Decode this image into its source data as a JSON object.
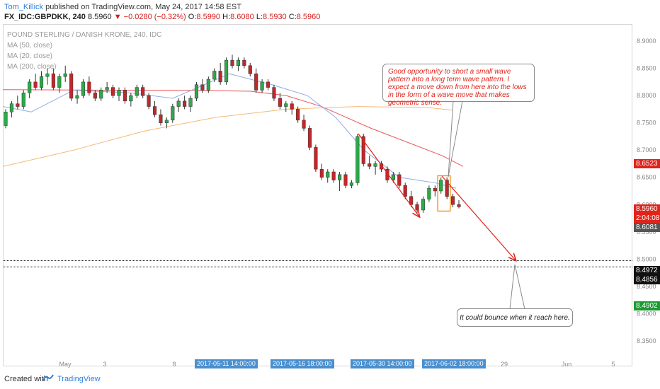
{
  "header": {
    "author": "Tom_Killick",
    "published_text": "published on TradingView.com, May 24, 2017 14:58 EST",
    "symbol": "FX_IDC:GBPDKK, 240",
    "last": "8.5960",
    "change": "▼ −0.0280 (−0.32%)",
    "ohlc": [
      {
        "label": "O:",
        "value": "8.5990"
      },
      {
        "label": "H:",
        "value": "8.6080"
      },
      {
        "label": "L:",
        "value": "8.5930"
      },
      {
        "label": "C:",
        "value": "8.5960"
      }
    ]
  },
  "legend": {
    "title": "POUND STERLING / DANISH KRONE, 240, IDC",
    "indicators": [
      "MA (50, close)",
      "MA (20, close)",
      "MA (200, close)"
    ]
  },
  "annotations": {
    "note_top": "Good opportunity to short a small wave pattern into a long term wave pattern. I expect a move down from here into the lows in the form of a wave move that makes geometric sense.",
    "note_bottom": "It could bounce when it reach here."
  },
  "price_badges": [
    {
      "label": "8.6523",
      "color": "#e0241b"
    },
    {
      "label": "8.5960",
      "color": "#e0241b"
    },
    {
      "label": "2:04:08",
      "color": "#e0241b"
    },
    {
      "label": "8.6081",
      "color": "#555555"
    },
    {
      "label": "8.4972",
      "color": "#111111"
    },
    {
      "label": "8.4856",
      "color": "#111111"
    },
    {
      "label": "8.4902",
      "color": "#1e9a34"
    }
  ],
  "time_badges": [
    "2017-05-11 14:00:00",
    "2017-05-16 18:00:00",
    "2017-05-30 14:00:00",
    "2017-06-02 18:00:00"
  ],
  "footer": {
    "created_with": "Created with",
    "brand": "TradingView"
  },
  "colors": {
    "up": "#2ea84a",
    "down": "#c0282b",
    "ma50": "#e8585a",
    "ma20": "#8fa8e8",
    "ma200": "#f5b97a",
    "arrow": "#e0241b",
    "box": "#f59a23"
  },
  "chart_data": {
    "type": "candlestick",
    "title": "POUND STERLING / DANISH KRONE, 240, IDC",
    "y_ticks": [
      "8.9000",
      "8.8500",
      "8.8000",
      "8.7500",
      "8.7000",
      "8.6500",
      "8.6000",
      "8.5500",
      "8.5000",
      "8.4500",
      "8.4000",
      "8.3500"
    ],
    "x_ticks": [
      "May",
      "3",
      "8",
      "7",
      "29",
      "Jun",
      "5"
    ],
    "ylim": [
      8.32,
      8.93
    ],
    "candles": [
      [
        8.745,
        8.775,
        8.74,
        8.77
      ],
      [
        8.77,
        8.79,
        8.76,
        8.785
      ],
      [
        8.785,
        8.8,
        8.775,
        8.78
      ],
      [
        8.78,
        8.81,
        8.775,
        8.805
      ],
      [
        8.805,
        8.83,
        8.795,
        8.825
      ],
      [
        8.825,
        8.84,
        8.81,
        8.815
      ],
      [
        8.815,
        8.845,
        8.81,
        8.835
      ],
      [
        8.835,
        8.85,
        8.82,
        8.84
      ],
      [
        8.84,
        8.85,
        8.81,
        8.815
      ],
      [
        8.815,
        8.84,
        8.805,
        8.835
      ],
      [
        8.835,
        8.855,
        8.825,
        8.84
      ],
      [
        8.84,
        8.845,
        8.79,
        8.795
      ],
      [
        8.795,
        8.81,
        8.785,
        8.8
      ],
      [
        8.8,
        8.83,
        8.795,
        8.825
      ],
      [
        8.825,
        8.835,
        8.8,
        8.805
      ],
      [
        8.805,
        8.81,
        8.79,
        8.795
      ],
      [
        8.795,
        8.815,
        8.79,
        8.81
      ],
      [
        8.81,
        8.825,
        8.805,
        8.815
      ],
      [
        8.815,
        8.82,
        8.795,
        8.8
      ],
      [
        8.8,
        8.815,
        8.79,
        8.81
      ],
      [
        8.81,
        8.815,
        8.785,
        8.79
      ],
      [
        8.79,
        8.805,
        8.78,
        8.8
      ],
      [
        8.8,
        8.82,
        8.795,
        8.815
      ],
      [
        8.815,
        8.82,
        8.795,
        8.8
      ],
      [
        8.8,
        8.805,
        8.775,
        8.78
      ],
      [
        8.78,
        8.79,
        8.76,
        8.765
      ],
      [
        8.765,
        8.775,
        8.745,
        8.75
      ],
      [
        8.75,
        8.76,
        8.74,
        8.755
      ],
      [
        8.755,
        8.785,
        8.75,
        8.78
      ],
      [
        8.78,
        8.795,
        8.77,
        8.79
      ],
      [
        8.79,
        8.8,
        8.775,
        8.78
      ],
      [
        8.78,
        8.8,
        8.77,
        8.795
      ],
      [
        8.795,
        8.825,
        8.79,
        8.82
      ],
      [
        8.82,
        8.83,
        8.805,
        8.81
      ],
      [
        8.81,
        8.835,
        8.805,
        8.83
      ],
      [
        8.83,
        8.85,
        8.825,
        8.845
      ],
      [
        8.845,
        8.86,
        8.82,
        8.825
      ],
      [
        8.825,
        8.87,
        8.82,
        8.865
      ],
      [
        8.865,
        8.875,
        8.85,
        8.855
      ],
      [
        8.855,
        8.87,
        8.845,
        8.865
      ],
      [
        8.865,
        8.87,
        8.85,
        8.855
      ],
      [
        8.855,
        8.86,
        8.835,
        8.84
      ],
      [
        8.84,
        8.85,
        8.805,
        8.81
      ],
      [
        8.81,
        8.83,
        8.805,
        8.825
      ],
      [
        8.825,
        8.83,
        8.81,
        8.815
      ],
      [
        8.815,
        8.82,
        8.79,
        8.795
      ],
      [
        8.795,
        8.805,
        8.775,
        8.78
      ],
      [
        8.78,
        8.79,
        8.77,
        8.785
      ],
      [
        8.785,
        8.79,
        8.765,
        8.775
      ],
      [
        8.775,
        8.78,
        8.75,
        8.755
      ],
      [
        8.755,
        8.765,
        8.735,
        8.74
      ],
      [
        8.74,
        8.745,
        8.7,
        8.705
      ],
      [
        8.705,
        8.71,
        8.66,
        8.665
      ],
      [
        8.665,
        8.675,
        8.645,
        8.65
      ],
      [
        8.65,
        8.665,
        8.64,
        8.66
      ],
      [
        8.66,
        8.665,
        8.64,
        8.645
      ],
      [
        8.645,
        8.66,
        8.625,
        8.655
      ],
      [
        8.655,
        8.66,
        8.63,
        8.635
      ],
      [
        8.635,
        8.645,
        8.63,
        8.64
      ],
      [
        8.64,
        8.73,
        8.635,
        8.725
      ],
      [
        8.725,
        8.73,
        8.67,
        8.675
      ],
      [
        8.675,
        8.69,
        8.665,
        8.67
      ],
      [
        8.67,
        8.68,
        8.655,
        8.675
      ],
      [
        8.675,
        8.68,
        8.66,
        8.665
      ],
      [
        8.665,
        8.67,
        8.64,
        8.645
      ],
      [
        8.645,
        8.66,
        8.64,
        8.655
      ],
      [
        8.655,
        8.66,
        8.63,
        8.635
      ],
      [
        8.635,
        8.64,
        8.61,
        8.615
      ],
      [
        8.615,
        8.625,
        8.595,
        8.6
      ],
      [
        8.6,
        8.605,
        8.585,
        8.59
      ],
      [
        8.59,
        8.615,
        8.585,
        8.61
      ],
      [
        8.61,
        8.635,
        8.605,
        8.63
      ],
      [
        8.63,
        8.635,
        8.615,
        8.625
      ],
      [
        8.625,
        8.65,
        8.62,
        8.645
      ],
      [
        8.645,
        8.65,
        8.61,
        8.615
      ],
      [
        8.615,
        8.62,
        8.595,
        8.6
      ],
      [
        8.6,
        8.608,
        8.593,
        8.596
      ]
    ],
    "candle_x_range": [
      8,
      648
    ],
    "horizontal_lines": [
      8.4972,
      8.4856
    ],
    "moving_averages": [
      {
        "name": "MA (50, close)",
        "points": [
          [
            0,
            8.811
          ],
          [
            150,
            8.81
          ],
          [
            250,
            8.81
          ],
          [
            350,
            8.808
          ],
          [
            400,
            8.8
          ],
          [
            450,
            8.78
          ],
          [
            520,
            8.74
          ],
          [
            580,
            8.71
          ],
          [
            620,
            8.69
          ],
          [
            650,
            8.67
          ]
        ]
      },
      {
        "name": "MA (20, close)",
        "points": [
          [
            0,
            8.78
          ],
          [
            40,
            8.77
          ],
          [
            100,
            8.81
          ],
          [
            180,
            8.805
          ],
          [
            240,
            8.795
          ],
          [
            320,
            8.84
          ],
          [
            380,
            8.82
          ],
          [
            430,
            8.8
          ],
          [
            470,
            8.76
          ],
          [
            510,
            8.7
          ],
          [
            560,
            8.65
          ],
          [
            610,
            8.64
          ],
          [
            640,
            8.63
          ]
        ]
      },
      {
        "name": "MA (200, close)",
        "points": [
          [
            0,
            8.67
          ],
          [
            100,
            8.7
          ],
          [
            200,
            8.735
          ],
          [
            300,
            8.76
          ],
          [
            400,
            8.775
          ],
          [
            500,
            8.78
          ],
          [
            600,
            8.778
          ],
          [
            645,
            8.772
          ]
        ]
      }
    ],
    "projection": {
      "from": [
        8.6523,
        624
      ],
      "to": [
        8.498,
        728
      ]
    },
    "wave_arrow": {
      "from": [
        8.73,
        506
      ],
      "to": [
        8.578,
        592
      ]
    }
  }
}
